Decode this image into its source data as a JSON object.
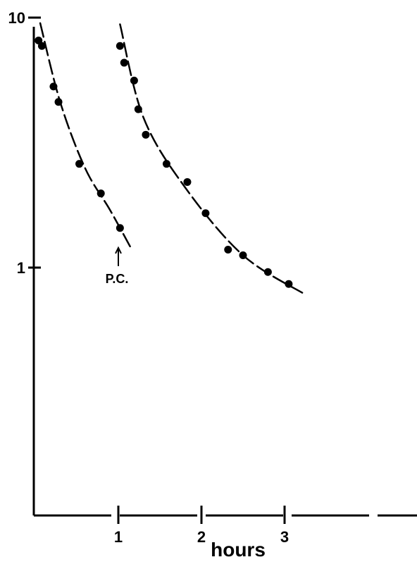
{
  "chart_data": {
    "type": "scatter",
    "title": "",
    "xlabel": "hours",
    "ylabel": "",
    "x_ticks": [
      {
        "value": 1,
        "label": "1"
      },
      {
        "value": 2,
        "label": "2"
      },
      {
        "value": 3,
        "label": "3"
      }
    ],
    "y_ticks": [
      {
        "value": 10,
        "label": "10"
      },
      {
        "value": 1,
        "label": "1"
      }
    ],
    "xlim": [
      0,
      4.6
    ],
    "ylim": [
      0.1,
      10
    ],
    "y_scale": "log",
    "grid": false,
    "legend": "none",
    "series": [
      {
        "points": [
          [
            0.04,
            8.1
          ],
          [
            0.08,
            7.7
          ],
          [
            0.22,
            5.3
          ],
          [
            0.28,
            4.6
          ],
          [
            0.53,
            2.6
          ],
          [
            0.79,
            1.98
          ],
          [
            1.02,
            1.44
          ]
        ],
        "curve": [
          [
            0.06,
            9.5
          ],
          [
            0.3,
            4.6
          ],
          [
            0.6,
            2.5
          ],
          [
            0.9,
            1.7
          ],
          [
            1.15,
            1.2
          ]
        ]
      },
      {
        "points": [
          [
            1.02,
            7.7
          ],
          [
            1.07,
            6.6
          ],
          [
            1.19,
            5.6
          ],
          [
            1.24,
            4.3
          ],
          [
            1.33,
            3.4
          ],
          [
            1.58,
            2.6
          ],
          [
            1.83,
            2.2
          ],
          [
            2.05,
            1.65
          ],
          [
            2.32,
            1.18
          ],
          [
            2.5,
            1.12
          ],
          [
            2.8,
            0.96
          ],
          [
            3.05,
            0.86
          ]
        ],
        "curve": [
          [
            1.02,
            9.4
          ],
          [
            1.3,
            4.0
          ],
          [
            1.8,
            2.1
          ],
          [
            2.5,
            1.12
          ],
          [
            3.25,
            0.78
          ]
        ]
      }
    ],
    "annotations": [
      {
        "text": "P.C.",
        "x": 1.0,
        "y": 1.2,
        "arrow": true
      }
    ],
    "marker_color": "#000000"
  }
}
